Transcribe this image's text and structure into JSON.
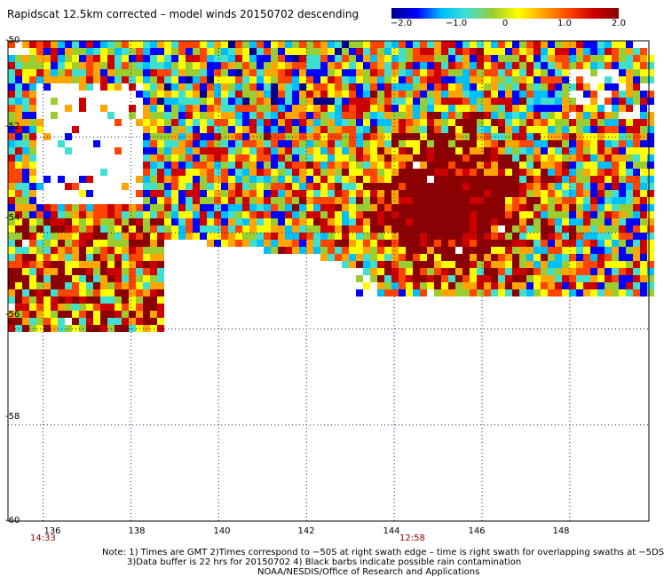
{
  "title": "Rapidscat 12.5km corrected – model winds 20150702 descending",
  "colorbar": {
    "labels": [
      "−2.0",
      "−1.0",
      "0",
      "1.0",
      "2.0"
    ],
    "stops": [
      "#00008b",
      "#0000ff",
      "#00bfff",
      "#40e0d0",
      "#9acd32",
      "#ffff00",
      "#ffa500",
      "#ff4500",
      "#cc0000",
      "#8b0000"
    ]
  },
  "x_ticks": [
    "136",
    "138",
    "140",
    "142",
    "144",
    "146",
    "148"
  ],
  "y_ticks": [
    "-50",
    "-52",
    "-54",
    "-56",
    "-58",
    "-60"
  ],
  "times": [
    "14:33",
    "12:58"
  ],
  "notes": [
    "Note: 1) Times are GMT 2)Times correspond to −50S at right swath edge – time is right swath for overlapping swaths at −5DS",
    "3)Data buffer is 22 hrs for 20150702 4) Black barbs indicate possible rain contamination",
    "NOAA/NESDIS/Office of Research and Applications"
  ],
  "map_data": {
    "lon_range": [
      135.2,
      149.8
    ],
    "lat_range": [
      -60,
      -50
    ],
    "value_range": [
      -2.0,
      2.0
    ],
    "feature": "Strong positive anomaly (>2.0) centered near 145E, 53.5S"
  }
}
